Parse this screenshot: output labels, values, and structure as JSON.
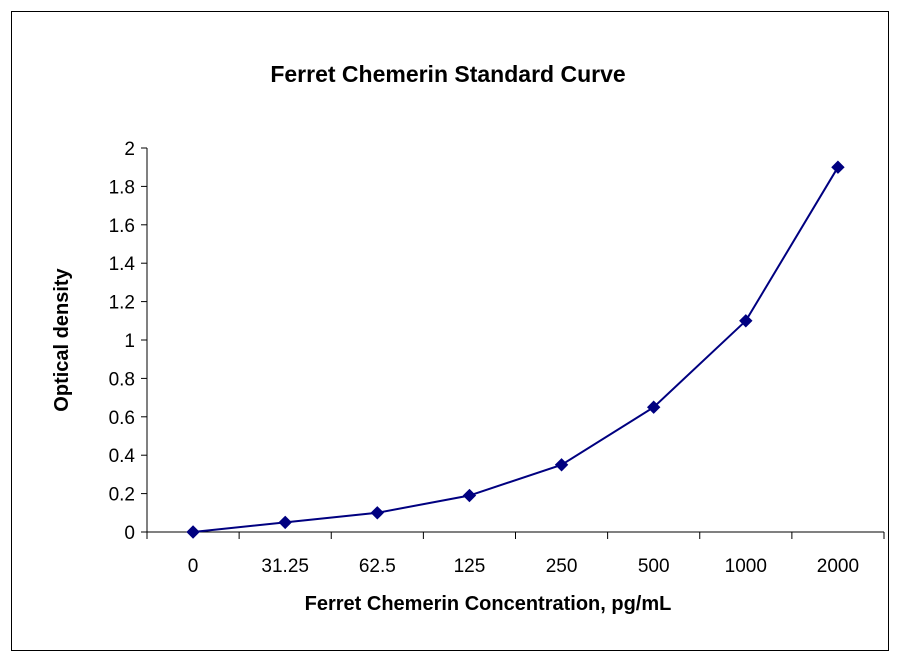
{
  "chart_data": {
    "type": "line",
    "title": "Ferret Chemerin Standard Curve",
    "xlabel": "Ferret Chemerin Concentration, pg/mL",
    "ylabel": "Optical density",
    "categories": [
      "0",
      "31.25",
      "62.5",
      "125",
      "250",
      "500",
      "1000",
      "2000"
    ],
    "values": [
      0,
      0.05,
      0.1,
      0.19,
      0.35,
      0.65,
      1.1,
      1.9
    ],
    "ylim": [
      0,
      2
    ],
    "yticks": [
      "0",
      "0.2",
      "0.4",
      "0.6",
      "0.8",
      "1",
      "1.2",
      "1.4",
      "1.6",
      "1.8",
      "2"
    ],
    "grid": false,
    "legend": "none",
    "marker": "diamond",
    "series_color": "#000080"
  }
}
